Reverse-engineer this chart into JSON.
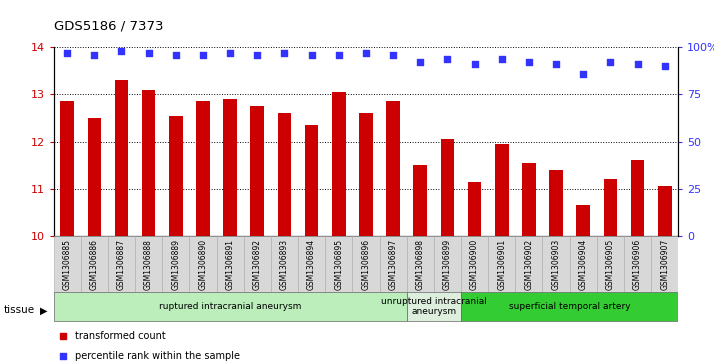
{
  "title": "GDS5186 / 7373",
  "samples": [
    "GSM1306885",
    "GSM1306886",
    "GSM1306887",
    "GSM1306888",
    "GSM1306889",
    "GSM1306890",
    "GSM1306891",
    "GSM1306892",
    "GSM1306893",
    "GSM1306894",
    "GSM1306895",
    "GSM1306896",
    "GSM1306897",
    "GSM1306898",
    "GSM1306899",
    "GSM1306900",
    "GSM1306901",
    "GSM1306902",
    "GSM1306903",
    "GSM1306904",
    "GSM1306905",
    "GSM1306906",
    "GSM1306907"
  ],
  "bar_values": [
    12.85,
    12.5,
    13.3,
    13.1,
    12.55,
    12.85,
    12.9,
    12.75,
    12.6,
    12.35,
    13.05,
    12.6,
    12.85,
    11.5,
    12.05,
    11.15,
    11.95,
    11.55,
    11.4,
    10.65,
    11.2,
    11.6,
    11.05
  ],
  "percentile_values": [
    97,
    96,
    98,
    97,
    96,
    96,
    97,
    96,
    97,
    96,
    96,
    97,
    96,
    92,
    94,
    91,
    94,
    92,
    91,
    86,
    92,
    91,
    90
  ],
  "ylim_left": [
    10,
    14
  ],
  "ylim_right": [
    0,
    100
  ],
  "yticks_left": [
    10,
    11,
    12,
    13,
    14
  ],
  "yticks_right": [
    0,
    25,
    50,
    75,
    100
  ],
  "yticklabels_right": [
    "0",
    "25",
    "50",
    "75",
    "100%"
  ],
  "bar_color": "#cc0000",
  "dot_color": "#3333ff",
  "grid_color": "#000000",
  "tissue_groups": [
    {
      "label": "ruptured intracranial aneurysm",
      "start": 0,
      "end": 13,
      "color": "#bbeebb"
    },
    {
      "label": "unruptured intracranial\naneurysm",
      "start": 13,
      "end": 15,
      "color": "#ddeedd"
    },
    {
      "label": "superficial temporal artery",
      "start": 15,
      "end": 23,
      "color": "#33cc33"
    }
  ],
  "legend_items": [
    {
      "label": "transformed count",
      "color": "#cc0000",
      "marker": "s"
    },
    {
      "label": "percentile rank within the sample",
      "color": "#3333ff",
      "marker": "s"
    }
  ],
  "tissue_label": "tissue",
  "plot_bg_color": "#ffffff",
  "axis_color_left": "#cc0000",
  "axis_color_right": "#3333ff",
  "xticklabel_bg": "#d8d8d8"
}
